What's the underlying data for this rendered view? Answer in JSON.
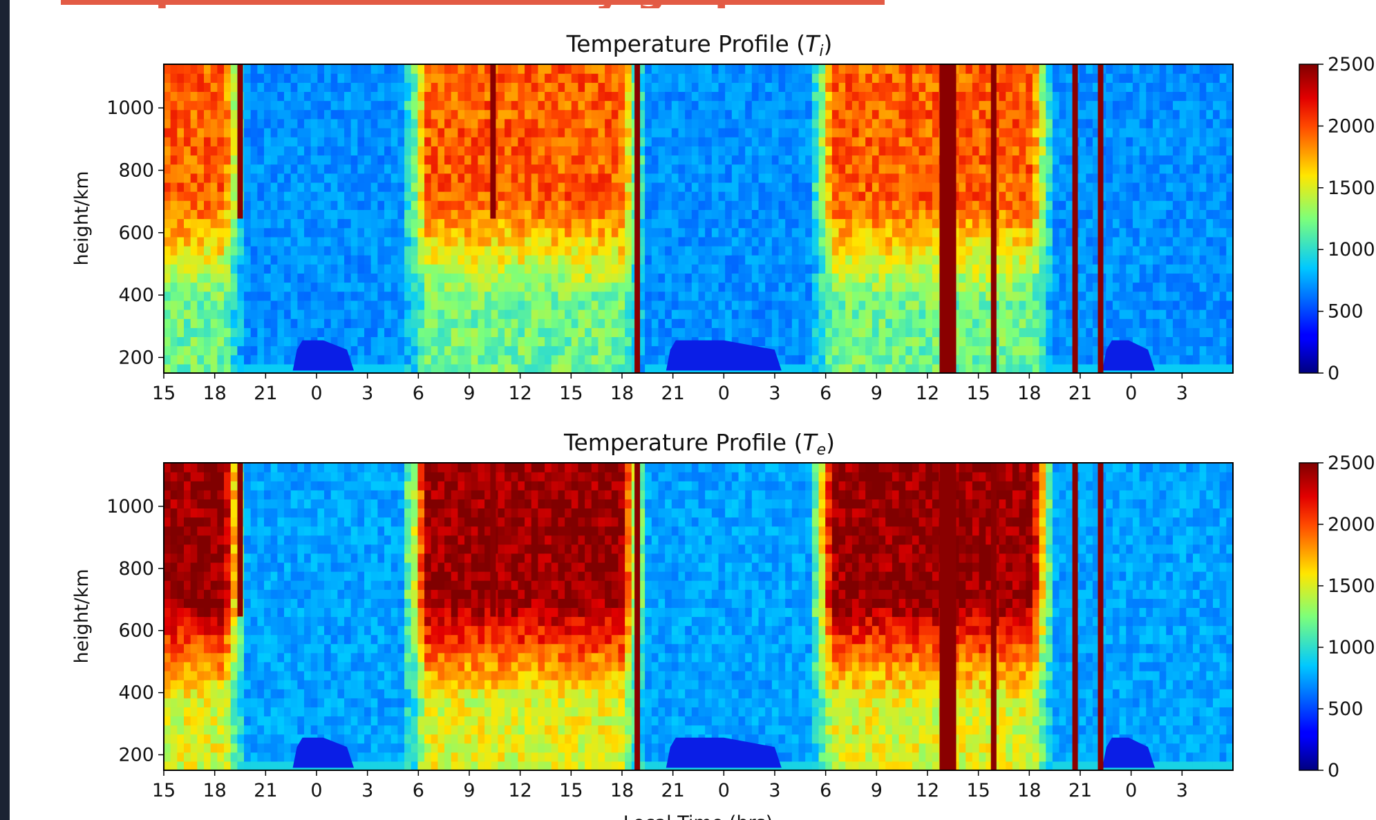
{
  "slide": {
    "heading": "Temperature Profiles by graph",
    "accent_color": "#e35b45",
    "side_strip_color": "#1b2333"
  },
  "chart_data": [
    {
      "type": "heatmap",
      "title": "Temperature Profile (T_i)",
      "title_base": "Temperature Profile (",
      "title_symbol": "T",
      "title_sub": "i",
      "title_close": ")",
      "xlabel": "",
      "ylabel": "height/km",
      "x_tick_labels": [
        "15",
        "18",
        "21",
        "0",
        "3",
        "6",
        "9",
        "12",
        "15",
        "18",
        "21",
        "0",
        "3",
        "6",
        "9",
        "12",
        "15",
        "18",
        "21",
        "0",
        "3"
      ],
      "x_range_hours": [
        0,
        63
      ],
      "y_ticks": [
        200,
        400,
        600,
        800,
        1000
      ],
      "y_range": [
        150,
        1140
      ],
      "colorbar": {
        "ticks": [
          0,
          500,
          1000,
          1500,
          2000,
          2500
        ],
        "range": [
          0,
          2500
        ],
        "colormap": "jet"
      },
      "day_spans_hours": [
        [
          0,
          4.8
        ],
        [
          14.3,
          28.2
        ],
        [
          38.2,
          52.4
        ]
      ],
      "night_level": 700,
      "day_upper_level": 1950,
      "day_mid_level": 1200,
      "streaks_hours": [
        4.5,
        19.4,
        27.9,
        46.2,
        48.9,
        53.7,
        55.2
      ],
      "low_patches_hours": [
        [
          7.6,
          11.2
        ],
        [
          29.6,
          36.4
        ],
        [
          55.3,
          58.4
        ]
      ]
    },
    {
      "type": "heatmap",
      "title": "Temperature Profile (T_e)",
      "title_base": "Temperature Profile (",
      "title_symbol": "T",
      "title_sub": "e",
      "title_close": ")",
      "xlabel": "Local Time (hrs)",
      "ylabel": "height/km",
      "x_tick_labels": [
        "15",
        "18",
        "21",
        "0",
        "3",
        "6",
        "9",
        "12",
        "15",
        "18",
        "21",
        "0",
        "3",
        "6",
        "9",
        "12",
        "15",
        "18",
        "21",
        "0",
        "3"
      ],
      "x_range_hours": [
        0,
        63
      ],
      "y_ticks": [
        200,
        400,
        600,
        800,
        1000
      ],
      "y_range": [
        150,
        1140
      ],
      "colorbar": {
        "ticks": [
          0,
          500,
          1000,
          1500,
          2000,
          2500
        ],
        "range": [
          0,
          2500
        ],
        "colormap": "jet"
      },
      "day_spans_hours": [
        [
          0,
          4.8
        ],
        [
          14.3,
          28.2
        ],
        [
          38.2,
          52.4
        ]
      ],
      "night_level": 750,
      "day_upper_level": 2450,
      "day_mid_level": 1500,
      "streaks_hours": [
        4.5,
        19.4,
        27.9,
        46.2,
        48.9,
        53.7,
        55.2
      ],
      "low_patches_hours": [
        [
          7.6,
          11.2
        ],
        [
          29.6,
          36.4
        ],
        [
          55.3,
          58.4
        ]
      ]
    }
  ]
}
